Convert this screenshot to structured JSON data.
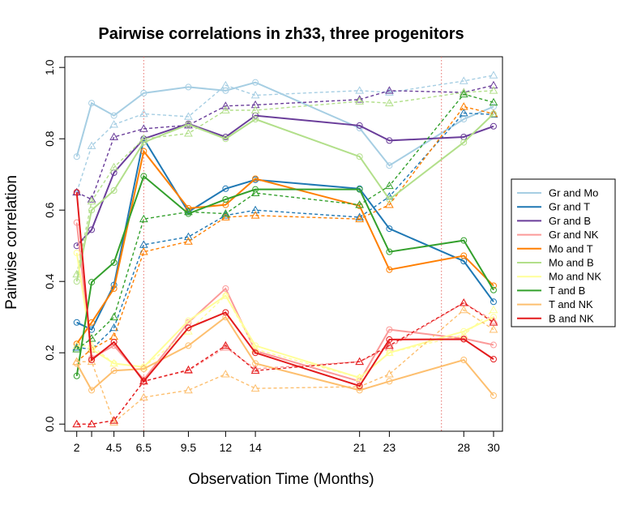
{
  "chart_data": {
    "type": "line",
    "title": "Pairwise correlations in zh33, three progenitors",
    "xlabel": "Observation Time (Months)",
    "ylabel": "Pairwise correlation",
    "x_ticks": [
      2,
      3,
      4.5,
      6.5,
      9.5,
      12,
      14,
      21,
      23,
      28,
      30
    ],
    "x_tick_labels": [
      "2",
      "",
      "4.5",
      "6.5",
      "9.5",
      "12",
      "14",
      "21",
      "23",
      "28",
      "30"
    ],
    "y_ticks": [
      0.0,
      0.2,
      0.4,
      0.6,
      0.8,
      1.0
    ],
    "y_tick_labels": [
      "0.0",
      "0.2",
      "0.4",
      "0.6",
      "0.8",
      "1.0"
    ],
    "xlim": [
      1.2,
      30.6
    ],
    "ylim": [
      -0.02,
      1.03
    ],
    "vlines": [
      6.5,
      26.5
    ],
    "legend_position": "right",
    "solid_x": [
      2,
      3,
      4.5,
      6.5,
      9.5,
      12,
      14,
      21,
      23,
      28,
      30
    ],
    "dashed_x": [
      2,
      3,
      4.5,
      6.5,
      9.5,
      12,
      14,
      21,
      23,
      28,
      30
    ],
    "series": [
      {
        "name": "Gr and Mo",
        "color": "#a6cee3",
        "solid": [
          0.75,
          0.9,
          0.865,
          0.928,
          0.945,
          0.935,
          0.958,
          0.83,
          0.725,
          0.855,
          0.89
        ],
        "dashed": [
          0.65,
          0.78,
          0.84,
          0.87,
          0.862,
          0.95,
          0.922,
          0.935,
          0.93,
          0.962,
          0.978
        ]
      },
      {
        "name": "Gr and T",
        "color": "#1f78b4",
        "solid": [
          0.285,
          0.265,
          0.39,
          0.8,
          0.595,
          0.66,
          0.685,
          0.66,
          0.548,
          0.457,
          0.343
        ],
        "dashed": [
          0.215,
          0.21,
          0.27,
          0.503,
          0.525,
          0.585,
          0.6,
          0.58,
          0.638,
          0.872,
          0.868
        ]
      },
      {
        "name": "Gr and B",
        "color": "#6a3d9a",
        "solid": [
          0.5,
          0.545,
          0.705,
          0.8,
          0.842,
          0.805,
          0.865,
          0.837,
          0.795,
          0.805,
          0.835
        ],
        "dashed": [
          0.65,
          0.63,
          0.805,
          0.828,
          0.838,
          0.892,
          0.895,
          0.91,
          0.935,
          0.93,
          0.95
        ]
      },
      {
        "name": "Gr and NK",
        "color": "#fb9a99",
        "solid": [
          0.565,
          0.185,
          0.22,
          0.125,
          0.285,
          0.38,
          0.205,
          0.12,
          0.265,
          0.24,
          0.222
        ],
        "dashed": [
          0.0,
          0.0,
          0.01,
          0.12,
          0.15,
          0.215,
          0.155,
          0.175,
          0.215,
          0.34,
          0.29
        ]
      },
      {
        "name": "Mo and T",
        "color": "#ff7f00",
        "solid": [
          0.225,
          0.285,
          0.38,
          0.765,
          0.605,
          0.615,
          0.688,
          0.612,
          0.433,
          0.472,
          0.388
        ],
        "dashed": [
          0.175,
          0.21,
          0.245,
          0.483,
          0.512,
          0.58,
          0.585,
          0.575,
          0.615,
          0.89,
          0.87
        ]
      },
      {
        "name": "Mo and B",
        "color": "#b2df8a",
        "solid": [
          0.4,
          0.6,
          0.655,
          0.79,
          0.84,
          0.8,
          0.855,
          0.75,
          0.63,
          0.79,
          0.87
        ],
        "dashed": [
          0.42,
          0.625,
          0.72,
          0.8,
          0.815,
          0.88,
          0.88,
          0.905,
          0.9,
          0.93,
          0.935
        ]
      },
      {
        "name": "Mo and NK",
        "color": "#ffff99",
        "solid": [
          0.48,
          0.21,
          0.17,
          0.16,
          0.29,
          0.36,
          0.22,
          0.13,
          0.2,
          0.26,
          0.3
        ],
        "dashed": [
          0.22,
          0.22,
          0.17,
          0.16,
          0.26,
          0.36,
          0.21,
          0.13,
          0.2,
          0.25,
          0.32
        ]
      },
      {
        "name": "T and B",
        "color": "#33a02c",
        "solid": [
          0.135,
          0.398,
          0.453,
          0.695,
          0.59,
          0.63,
          0.658,
          0.658,
          0.483,
          0.515,
          0.376
        ],
        "dashed": [
          0.21,
          0.24,
          0.3,
          0.575,
          0.595,
          0.59,
          0.648,
          0.615,
          0.668,
          0.925,
          0.902
        ]
      },
      {
        "name": "T and NK",
        "color": "#fdbf6f",
        "solid": [
          0.17,
          0.095,
          0.15,
          0.155,
          0.22,
          0.3,
          0.17,
          0.095,
          0.12,
          0.18,
          0.08
        ],
        "dashed": [
          0.175,
          0.175,
          0.005,
          0.075,
          0.095,
          0.14,
          0.1,
          0.105,
          0.14,
          0.32,
          0.265
        ]
      },
      {
        "name": "B and NK",
        "color": "#e31a1c",
        "solid": [
          0.65,
          0.18,
          0.23,
          0.12,
          0.27,
          0.313,
          0.2,
          0.107,
          0.237,
          0.238,
          0.182
        ],
        "dashed": [
          0.0,
          0.0,
          0.01,
          0.12,
          0.152,
          0.22,
          0.15,
          0.175,
          0.22,
          0.34,
          0.285
        ]
      }
    ]
  }
}
